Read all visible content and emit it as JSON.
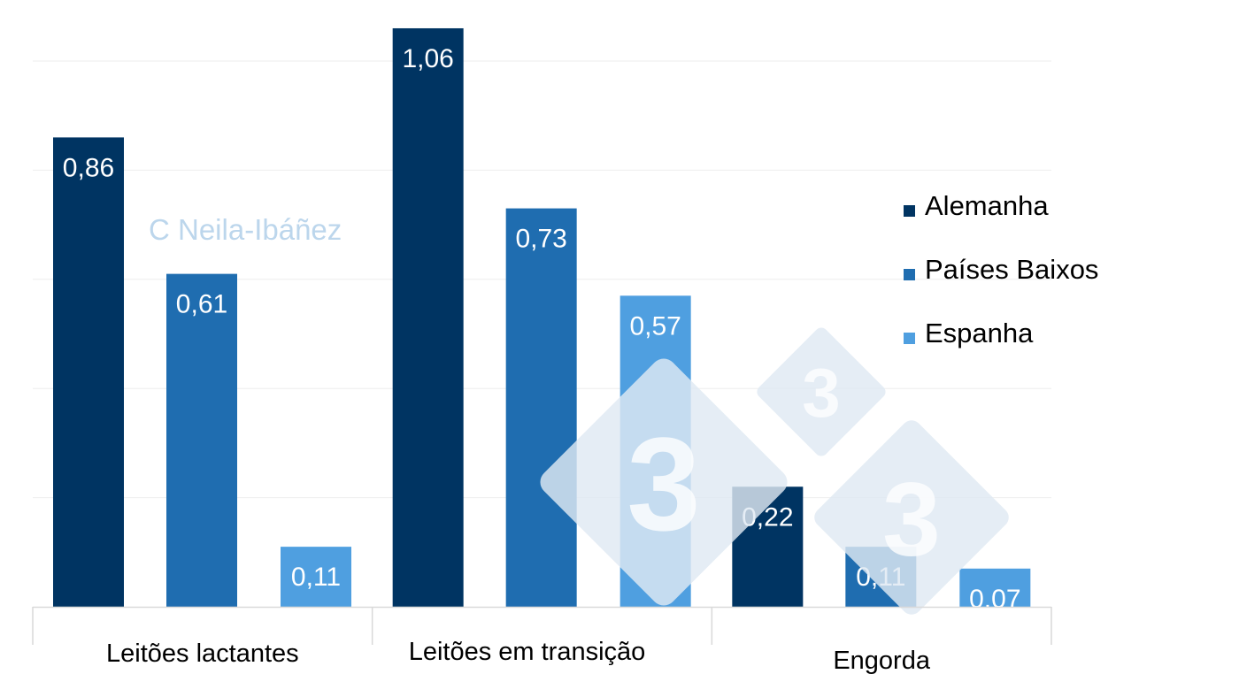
{
  "chart_data": {
    "type": "bar",
    "title": "",
    "xlabel": "",
    "ylabel": "",
    "ylim": [
      0,
      1.06
    ],
    "grid": true,
    "legend_position": "right",
    "categories": [
      "Leitões lactantes",
      "Leitões em transição",
      "Engorda"
    ],
    "series": [
      {
        "name": "Alemanha",
        "color": "#003462",
        "values": [
          0.86,
          1.06,
          0.22
        ],
        "labels": [
          "0,86",
          "1,06",
          "0,22"
        ]
      },
      {
        "name": "Países Baixos",
        "color": "#1f6db0",
        "values": [
          0.61,
          0.73,
          0.11
        ],
        "labels": [
          "0,61",
          "0,73",
          "0,11"
        ]
      },
      {
        "name": "Espanha",
        "color": "#4f9fe0",
        "values": [
          0.11,
          0.57,
          0.07
        ],
        "labels": [
          "0,11",
          "0,57",
          "0,07"
        ]
      }
    ]
  },
  "watermark": {
    "text": "C Neila-Ibáñez",
    "logo_text": "3",
    "logo_color": "#dfe9f3"
  }
}
